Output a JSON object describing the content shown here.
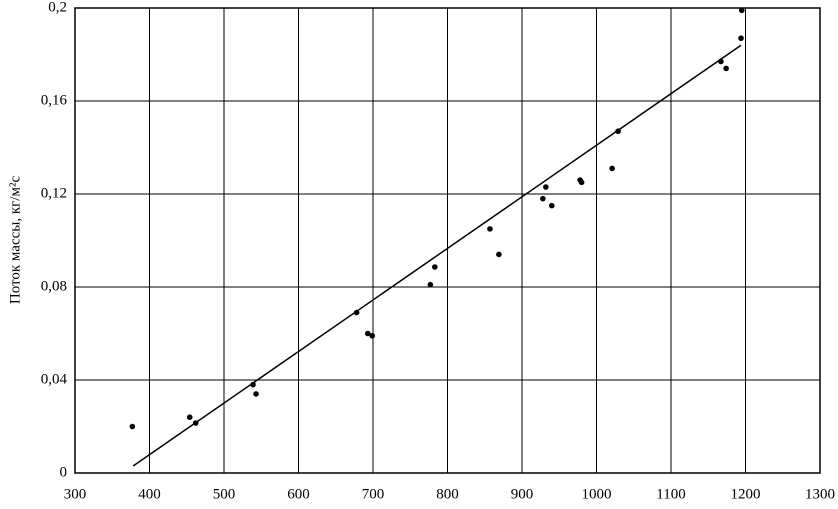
{
  "chart_data": {
    "type": "scatter",
    "y_label": "Поток массы, кг/м²с",
    "xlim": [
      300,
      1300
    ],
    "xticks": [
      300,
      400,
      500,
      600,
      700,
      800,
      900,
      1000,
      1100,
      1200,
      1300
    ],
    "ylim": [
      0,
      0.2
    ],
    "yticks": [
      0,
      {
        "value": 0.04,
        "label": "0,04"
      },
      {
        "value": 0.08,
        "label": "0,08"
      },
      {
        "value": 0.12,
        "label": "0,12"
      },
      {
        "value": 0.16,
        "label": "0,16"
      },
      {
        "value": 0.2,
        "label": "0,2"
      }
    ],
    "grid": true,
    "series": [
      {
        "type": "scatter",
        "color": "#000000",
        "x": [
          377,
          454,
          462,
          539,
          543,
          678,
          693,
          699,
          777,
          783,
          857,
          869,
          928,
          932,
          940,
          978,
          980,
          1021,
          1029,
          1167,
          1174,
          1194,
          1195
        ],
        "values": [
          0.02,
          0.024,
          0.0215,
          0.038,
          0.034,
          0.069,
          0.06,
          0.059,
          0.081,
          0.0886,
          0.105,
          0.094,
          0.118,
          0.123,
          0.115,
          0.126,
          0.125,
          0.131,
          0.147,
          0.177,
          0.174,
          0.187,
          0.199
        ]
      },
      {
        "type": "line",
        "color": "#000000",
        "x": [
          378,
          1194
        ],
        "values": [
          0.003,
          0.184
        ]
      }
    ]
  }
}
